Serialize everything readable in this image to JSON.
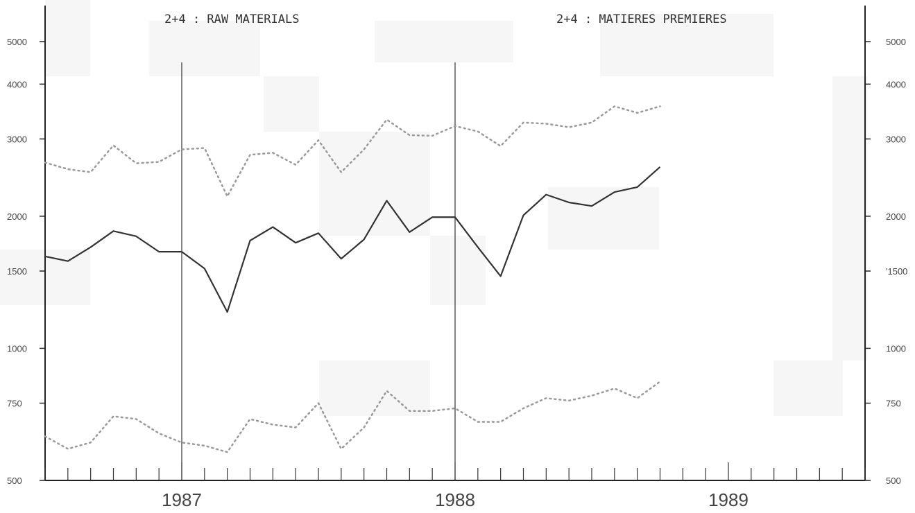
{
  "chart_data": {
    "type": "line",
    "title_left": "2+4 : RAW MATERIALS",
    "title_right": "2+4 : MATIERES PREMIERES",
    "y_scale": "log",
    "ylim": [
      500,
      5500
    ],
    "y_ticks": [
      500,
      750,
      1000,
      1500,
      2000,
      3000,
      4000,
      5000
    ],
    "y_tick_labels": [
      "500",
      "750",
      "1000",
      "1500",
      "2000",
      "3000",
      "4000",
      "5000"
    ],
    "y_tick_labels_right": [
      "500",
      "750",
      "1000",
      "'1500",
      "2000",
      "3000",
      "4000",
      "5000"
    ],
    "x_labels": [
      "1987",
      "1988",
      "1989"
    ],
    "x_range_months": [
      0,
      36
    ],
    "series": [
      {
        "style": "dotted",
        "color": "#999999",
        "values": [
          2650,
          2560,
          2520,
          2900,
          2640,
          2660,
          2840,
          2860,
          2220,
          2760,
          2790,
          2620,
          2980,
          2520,
          2840,
          3320,
          3060,
          3050,
          3210,
          3120,
          2890,
          3270,
          3250,
          3190,
          3270,
          3560,
          3440,
          3560
        ]
      },
      {
        "style": "solid",
        "color": "#333333",
        "values": [
          1620,
          1580,
          1700,
          1850,
          1800,
          1660,
          1660,
          1520,
          1210,
          1760,
          1890,
          1740,
          1830,
          1600,
          1770,
          2170,
          1840,
          1990,
          1990,
          1700,
          1460,
          2010,
          2240,
          2150,
          2110,
          2270,
          2330,
          2590
        ]
      },
      {
        "style": "dotted",
        "color": "#999999",
        "values": [
          630,
          590,
          610,
          700,
          690,
          640,
          610,
          600,
          580,
          690,
          670,
          660,
          750,
          590,
          660,
          800,
          720,
          720,
          730,
          680,
          680,
          730,
          770,
          760,
          780,
          810,
          770,
          840
        ]
      }
    ],
    "vertical_markers_month": [
      6,
      18
    ]
  }
}
